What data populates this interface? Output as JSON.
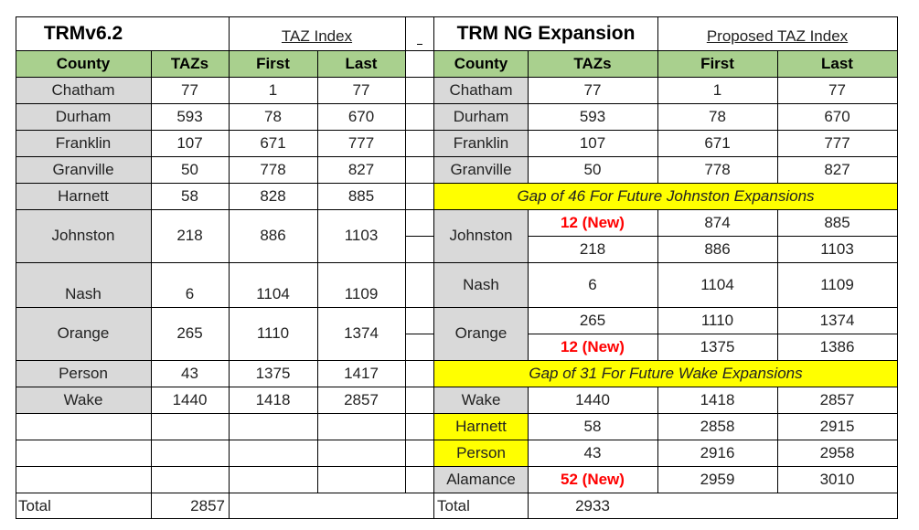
{
  "left": {
    "title": "TRMv6.2",
    "index_label": "TAZ Index",
    "headers": [
      "County",
      "TAZs",
      "First",
      "Last"
    ],
    "rows": [
      [
        "Chatham",
        "77",
        "1",
        "77"
      ],
      [
        "Durham",
        "593",
        "78",
        "670"
      ],
      [
        "Franklin",
        "107",
        "671",
        "777"
      ],
      [
        "Granville",
        "50",
        "778",
        "827"
      ],
      [
        "Harnett",
        "58",
        "828",
        "885"
      ],
      [
        "Johnston",
        "218",
        "886",
        "1103"
      ],
      [
        "Nash",
        "6",
        "1104",
        "1109"
      ],
      [
        "Orange",
        "265",
        "1110",
        "1374"
      ],
      [
        "Person",
        "43",
        "1375",
        "1417"
      ],
      [
        "Wake",
        "1440",
        "1418",
        "2857"
      ]
    ],
    "total_label": "Total",
    "total_value": "2857"
  },
  "right": {
    "title": "TRM NG Expansion",
    "index_label": "Proposed TAZ Index",
    "headers": [
      "County",
      "TAZs",
      "First",
      "Last"
    ],
    "rows_top": [
      [
        "Chatham",
        "77",
        "1",
        "77"
      ],
      [
        "Durham",
        "593",
        "78",
        "670"
      ],
      [
        "Franklin",
        "107",
        "671",
        "777"
      ],
      [
        "Granville",
        "50",
        "778",
        "827"
      ]
    ],
    "gap1": "Gap of 46 For Future Johnston Expansions",
    "johnston": {
      "county": "Johnston",
      "new_row": [
        "12 (New)",
        "874",
        "885"
      ],
      "row": [
        "218",
        "886",
        "1103"
      ]
    },
    "nash": [
      "Nash",
      "6",
      "1104",
      "1109"
    ],
    "orange": {
      "county": "Orange",
      "row": [
        "265",
        "1110",
        "1374"
      ],
      "new_row": [
        "12 (New)",
        "1375",
        "1386"
      ]
    },
    "gap2": "Gap of 31 For Future Wake Expansions",
    "wake": [
      "Wake",
      "1440",
      "1418",
      "2857"
    ],
    "harnett": [
      "Harnett",
      "58",
      "2858",
      "2915"
    ],
    "person": [
      "Person",
      "43",
      "2916",
      "2958"
    ],
    "alamance": [
      "Alamance",
      "52 (New)",
      "2959",
      "3010"
    ],
    "total_label": "Total",
    "total_value": "2933"
  },
  "colors": {
    "header_green": "#a9d08e",
    "county_gray": "#d9d9d9",
    "gap_yellow": "#ffff00",
    "new_red": "#ff0000"
  }
}
